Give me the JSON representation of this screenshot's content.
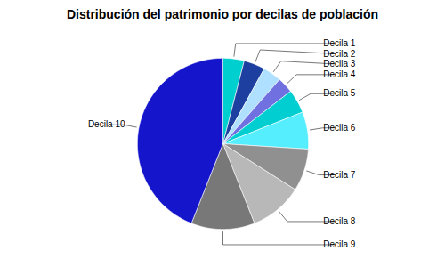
{
  "chart_data": {
    "type": "pie",
    "title": "Distribución del patrimonio por decilas de población",
    "categories": [
      "Decila 1",
      "Decila 2",
      "Decila 3",
      "Decila 4",
      "Decila 5",
      "Decila 6",
      "Decila 7",
      "Decila 8",
      "Decila 9",
      "Decila 10"
    ],
    "values": [
      4.0,
      4.0,
      3.5,
      3.0,
      4.5,
      7.0,
      8.0,
      10.0,
      12.0,
      44.0
    ],
    "colors": [
      "#00CFCF",
      "#1C3FA0",
      "#B0E0FF",
      "#7070E0",
      "#00CED1",
      "#55EEFF",
      "#909090",
      "#B8B8B8",
      "#787878",
      "#1515CC"
    ]
  }
}
